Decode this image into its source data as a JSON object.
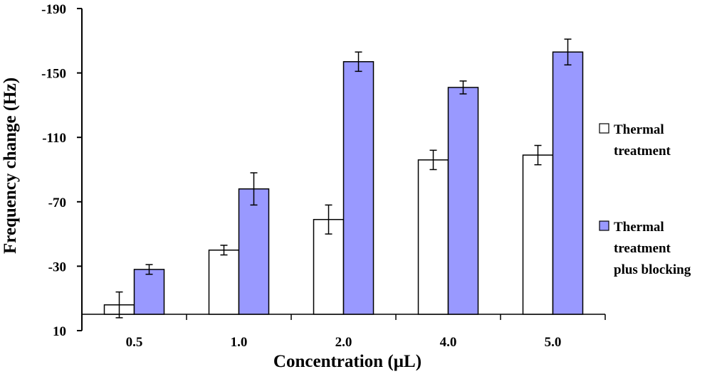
{
  "chart_data": {
    "type": "bar",
    "title": "",
    "xlabel": "Concentration (µL)",
    "ylabel": "Frequency change (Hz)",
    "ylim": [
      10,
      -190
    ],
    "yticks": [
      10,
      -30,
      -70,
      -110,
      -150,
      -190
    ],
    "ytick_labels": [
      "10",
      "-30",
      "-70",
      "-110",
      "-150",
      "-190"
    ],
    "categories": [
      "0.5",
      "1.0",
      "2.0",
      "4.0",
      "5.0"
    ],
    "series": [
      {
        "name": "Thermal treatment",
        "legend_lines": [
          "Thermal",
          "treatment"
        ],
        "color": "#ffffff",
        "values": [
          -6,
          -40,
          -59,
          -96,
          -99
        ],
        "errors": [
          8,
          3,
          9,
          6,
          6
        ]
      },
      {
        "name": "Thermal treatment plus blocking",
        "legend_lines": [
          "Thermal",
          "treatment",
          "plus blocking"
        ],
        "color": "#9999ff",
        "values": [
          -28,
          -78,
          -157,
          -141,
          -163
        ],
        "errors": [
          3,
          10,
          6,
          4,
          8
        ]
      }
    ],
    "grid": false,
    "legend_position": "right"
  }
}
